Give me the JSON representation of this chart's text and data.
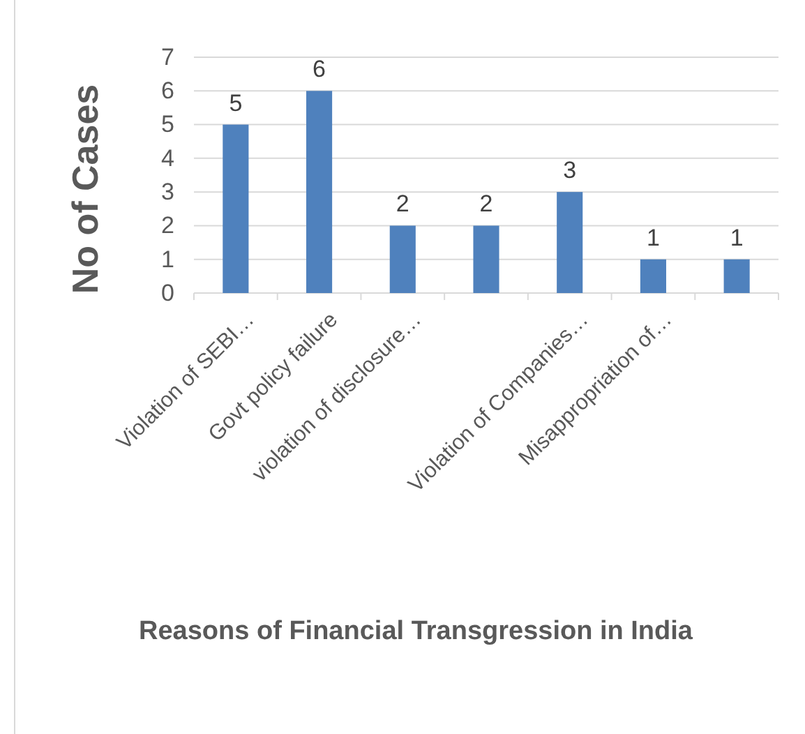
{
  "chart_data": {
    "type": "bar",
    "xlabel": "Reasons of Financial Transgression in India",
    "ylabel": "No of Cases",
    "categories": [
      "Violation of SEBI…",
      "Govt policy failure",
      "violation of disclosure…",
      null,
      "Violation of Companies…",
      "Misappropriation of…",
      null
    ],
    "values": [
      5,
      6,
      2,
      2,
      3,
      1,
      1
    ],
    "color": "#4f81bd",
    "ylim": [
      0,
      7
    ],
    "yticks": [
      0,
      1,
      2,
      3,
      4,
      5,
      6,
      7
    ],
    "grid": "y",
    "data_labels": true
  }
}
